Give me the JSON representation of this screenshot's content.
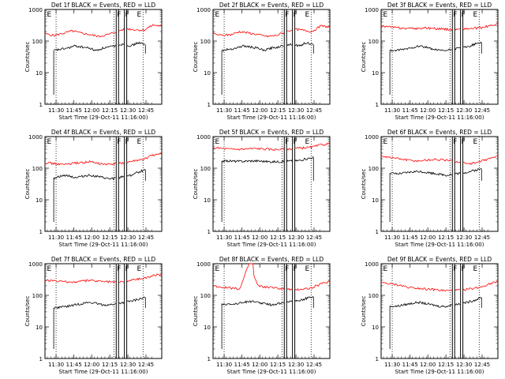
{
  "figure": {
    "background": "#ffffff",
    "event_color": "#000000",
    "lld_color": "#ff0000"
  },
  "chart_data": [
    {
      "type": "line",
      "title": "Det 1f BLACK = Events, RED = LLD",
      "xlabel": "Start Time (29-Oct-11 11:16:00)",
      "ylabel": "Counts/sec",
      "x_ticks": [
        "11:30",
        "11:45",
        "12:00",
        "12:15",
        "12:30",
        "12:45"
      ],
      "y_ticks": [
        "1",
        "10",
        "100",
        "1000"
      ],
      "ylim": [
        1,
        1000
      ],
      "y_scale": "log",
      "marker_labels": [
        "E",
        "F",
        "F",
        "E"
      ],
      "series": [
        {
          "name": "LLD",
          "color": "#ff0000",
          "level": [
            170,
            150,
            175,
            210,
            180,
            160,
            140,
            160,
            200,
            250,
            230,
            220,
            320,
            300
          ]
        },
        {
          "name": "Events",
          "color": "#000000",
          "level": [
            50,
            55,
            60,
            70,
            65,
            60,
            50,
            60,
            65,
            75,
            80,
            70,
            90,
            75
          ]
        }
      ]
    },
    {
      "type": "line",
      "title": "Det 2f BLACK = Events, RED = LLD",
      "xlabel": "Start Time (29-Oct-11 11:16:00)",
      "ylabel": "Counts/sec",
      "x_ticks": [
        "11:30",
        "11:45",
        "12:00",
        "12:15",
        "12:30",
        "12:45"
      ],
      "y_ticks": [
        "1",
        "10",
        "100",
        "1000"
      ],
      "ylim": [
        1,
        1000
      ],
      "y_scale": "log",
      "marker_labels": [
        "E",
        "F",
        "F",
        "E"
      ],
      "series": [
        {
          "name": "LLD",
          "color": "#ff0000",
          "level": [
            170,
            150,
            160,
            200,
            180,
            160,
            140,
            150,
            190,
            240,
            220,
            200,
            300,
            280
          ]
        },
        {
          "name": "Events",
          "color": "#000000",
          "level": [
            50,
            55,
            60,
            70,
            65,
            60,
            50,
            60,
            65,
            75,
            80,
            70,
            90,
            75
          ]
        }
      ]
    },
    {
      "type": "line",
      "title": "Det 3f BLACK = Events, RED = LLD",
      "xlabel": "Start Time (29-Oct-11 11:16:00)",
      "ylabel": "Counts/sec",
      "x_ticks": [
        "11:30",
        "11:45",
        "12:00",
        "12:15",
        "12:30",
        "12:45"
      ],
      "y_ticks": [
        "1",
        "10",
        "100",
        "1000"
      ],
      "ylim": [
        1,
        1000
      ],
      "y_scale": "log",
      "marker_labels": [
        "E",
        "F",
        "F",
        "E"
      ],
      "series": [
        {
          "name": "LLD",
          "color": "#ff0000",
          "level": [
            300,
            280,
            260,
            250,
            250,
            260,
            250,
            240,
            230,
            240,
            250,
            260,
            300,
            350
          ]
        },
        {
          "name": "Events",
          "color": "#000000",
          "level": [
            50,
            50,
            55,
            60,
            70,
            65,
            55,
            50,
            50,
            55,
            60,
            65,
            80,
            90
          ]
        }
      ]
    },
    {
      "type": "line",
      "title": "Det 4f BLACK = Events, RED = LLD",
      "xlabel": "Start Time (29-Oct-11 11:16:00)",
      "ylabel": "Counts/sec",
      "x_ticks": [
        "11:30",
        "11:45",
        "12:00",
        "12:15",
        "12:30",
        "12:45"
      ],
      "y_ticks": [
        "1",
        "10",
        "100",
        "1000"
      ],
      "ylim": [
        1,
        1000
      ],
      "y_scale": "log",
      "marker_labels": [
        "E",
        "F",
        "F",
        "E"
      ],
      "series": [
        {
          "name": "LLD",
          "color": "#ff0000",
          "level": [
            150,
            140,
            130,
            140,
            150,
            160,
            140,
            130,
            140,
            150,
            170,
            190,
            260,
            280
          ]
        },
        {
          "name": "Events",
          "color": "#000000",
          "level": [
            50,
            55,
            60,
            50,
            55,
            60,
            55,
            50,
            45,
            50,
            55,
            60,
            75,
            90
          ]
        }
      ]
    },
    {
      "type": "line",
      "title": "Det 5f BLACK = Events, RED = LLD",
      "xlabel": "Start Time (29-Oct-11 11:16:00)",
      "ylabel": "Counts/sec",
      "x_ticks": [
        "11:30",
        "11:45",
        "12:00",
        "12:15",
        "12:30",
        "12:45"
      ],
      "y_ticks": [
        "1",
        "10",
        "100",
        "1000"
      ],
      "ylim": [
        1,
        1000
      ],
      "y_scale": "log",
      "marker_labels": [
        "E",
        "F",
        "F",
        "E"
      ],
      "series": [
        {
          "name": "LLD",
          "color": "#ff0000",
          "level": [
            450,
            420,
            400,
            400,
            410,
            420,
            400,
            390,
            400,
            420,
            440,
            460,
            550,
            600
          ]
        },
        {
          "name": "Events",
          "color": "#000000",
          "level": [
            170,
            170,
            165,
            165,
            170,
            170,
            165,
            160,
            160,
            165,
            170,
            175,
            200,
            220
          ]
        }
      ]
    },
    {
      "type": "line",
      "title": "Det 6f BLACK = Events, RED = LLD",
      "xlabel": "Start Time (29-Oct-11 11:16:00)",
      "ylabel": "Counts/sec",
      "x_ticks": [
        "11:30",
        "11:45",
        "12:00",
        "12:15",
        "12:30",
        "12:45"
      ],
      "y_ticks": [
        "1",
        "10",
        "100",
        "1000"
      ],
      "ylim": [
        1,
        1000
      ],
      "y_scale": "log",
      "marker_labels": [
        "E",
        "F",
        "F",
        "E"
      ],
      "series": [
        {
          "name": "LLD",
          "color": "#ff0000",
          "level": [
            250,
            220,
            200,
            180,
            170,
            180,
            190,
            180,
            170,
            150,
            140,
            160,
            200,
            240
          ]
        },
        {
          "name": "Events",
          "color": "#000000",
          "level": [
            70,
            65,
            70,
            75,
            80,
            75,
            70,
            65,
            60,
            65,
            70,
            75,
            85,
            95
          ]
        }
      ]
    },
    {
      "type": "line",
      "title": "Det 7f BLACK = Events, RED = LLD",
      "xlabel": "Start Time (29-Oct-11 11:16:00)",
      "ylabel": "Counts/sec",
      "x_ticks": [
        "11:30",
        "11:45",
        "12:00",
        "12:15",
        "12:30",
        "12:45"
      ],
      "y_ticks": [
        "1",
        "10",
        "100",
        "1000"
      ],
      "ylim": [
        1,
        1000
      ],
      "y_scale": "log",
      "marker_labels": [
        "E",
        "F",
        "F",
        "E"
      ],
      "series": [
        {
          "name": "LLD",
          "color": "#ff0000",
          "level": [
            300,
            280,
            270,
            260,
            280,
            300,
            280,
            270,
            260,
            280,
            320,
            350,
            420,
            450
          ]
        },
        {
          "name": "Events",
          "color": "#000000",
          "level": [
            40,
            42,
            45,
            50,
            55,
            60,
            55,
            50,
            50,
            55,
            60,
            65,
            75,
            85
          ]
        }
      ]
    },
    {
      "type": "line",
      "title": "Det 8f BLACK = Events, RED = LLD",
      "xlabel": "Start Time (29-Oct-11 11:16:00)",
      "ylabel": "Counts/sec",
      "x_ticks": [
        "11:30",
        "11:45",
        "12:00",
        "12:15",
        "12:30",
        "12:45"
      ],
      "y_ticks": [
        "1",
        "10",
        "100",
        "1000"
      ],
      "ylim": [
        1,
        1000
      ],
      "y_scale": "log",
      "marker_labels": [
        "E",
        "F",
        "F",
        "E"
      ],
      "series": [
        {
          "name": "LLD",
          "color": "#ff0000",
          "level": [
            200,
            180,
            170,
            160,
            1000,
            200,
            180,
            170,
            160,
            150,
            160,
            170,
            230,
            280
          ],
          "spike": [
            4
          ]
        },
        {
          "name": "Events",
          "color": "#000000",
          "level": [
            55,
            50,
            55,
            60,
            65,
            60,
            55,
            50,
            55,
            60,
            65,
            70,
            80,
            90
          ]
        }
      ]
    },
    {
      "type": "line",
      "title": "Det 9f BLACK = Events, RED = LLD",
      "xlabel": "Start Time (29-Oct-11 11:16:00)",
      "ylabel": "Counts/sec",
      "x_ticks": [
        "11:30",
        "11:45",
        "12:00",
        "12:15",
        "12:30",
        "12:45"
      ],
      "y_ticks": [
        "1",
        "10",
        "100",
        "1000"
      ],
      "ylim": [
        1,
        1000
      ],
      "y_scale": "log",
      "marker_labels": [
        "E",
        "F",
        "F",
        "E"
      ],
      "series": [
        {
          "name": "LLD",
          "color": "#ff0000",
          "level": [
            250,
            230,
            210,
            180,
            170,
            160,
            150,
            140,
            140,
            150,
            160,
            180,
            230,
            280
          ]
        },
        {
          "name": "Events",
          "color": "#000000",
          "level": [
            45,
            45,
            50,
            55,
            60,
            55,
            50,
            45,
            45,
            50,
            55,
            60,
            70,
            85
          ]
        }
      ]
    }
  ]
}
